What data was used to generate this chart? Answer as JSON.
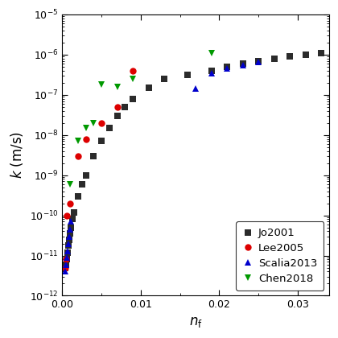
{
  "xlabel": "$n_\\mathrm{f}$",
  "ylabel": "$k$  (m/s)",
  "xlim": [
    0,
    0.034
  ],
  "ylim": [
    1e-12,
    1e-05
  ],
  "Jo2001": {
    "color": "#2b2b2b",
    "marker": "s",
    "label": "Jo2001",
    "x": [
      0.0004,
      0.0005,
      0.0006,
      0.0007,
      0.0008,
      0.0009,
      0.001,
      0.0011,
      0.0013,
      0.0015,
      0.002,
      0.0025,
      0.003,
      0.004,
      0.005,
      0.006,
      0.007,
      0.008,
      0.009,
      0.011,
      0.013,
      0.016,
      0.019,
      0.021,
      0.023,
      0.025,
      0.027,
      0.029,
      0.031,
      0.033
    ],
    "y": [
      5e-12,
      6e-12,
      8e-12,
      1.2e-11,
      1.8e-11,
      2.5e-11,
      3.5e-11,
      5e-11,
      8e-11,
      1.2e-10,
      3e-10,
      6e-10,
      1e-09,
      3e-09,
      7e-09,
      1.5e-08,
      3e-08,
      5e-08,
      8e-08,
      1.5e-07,
      2.5e-07,
      3.2e-07,
      4e-07,
      5e-07,
      6e-07,
      7e-07,
      8e-07,
      9e-07,
      1e-06,
      1.1e-06
    ]
  },
  "Lee2005": {
    "color": "#dd0000",
    "marker": "o",
    "label": "Lee2005",
    "x": [
      0.0004,
      0.0005,
      0.0006,
      0.001,
      0.002,
      0.003,
      0.005,
      0.007,
      0.009
    ],
    "y": [
      5e-12,
      8e-12,
      1e-10,
      2e-10,
      3e-09,
      8e-09,
      2e-08,
      5e-08,
      4e-07
    ]
  },
  "Scalia2013": {
    "color": "#0000cc",
    "marker": "^",
    "label": "Scalia2013",
    "x": [
      0.0004,
      0.0005,
      0.0006,
      0.0007,
      0.0008,
      0.0009,
      0.001,
      0.0011,
      0.017,
      0.019,
      0.021,
      0.023,
      0.025
    ],
    "y": [
      4e-12,
      6e-12,
      9e-12,
      1.3e-11,
      2e-11,
      3e-11,
      4.5e-11,
      7e-11,
      1.4e-07,
      3.5e-07,
      4.5e-07,
      5.5e-07,
      6.5e-07
    ]
  },
  "Chen2018": {
    "color": "#009900",
    "marker": "v",
    "label": "Chen2018",
    "x": [
      0.001,
      0.002,
      0.003,
      0.004,
      0.005,
      0.007,
      0.009,
      0.019
    ],
    "y": [
      6e-10,
      7e-09,
      1.5e-08,
      2e-08,
      1.8e-07,
      1.6e-07,
      2.5e-07,
      1.1e-06
    ]
  }
}
